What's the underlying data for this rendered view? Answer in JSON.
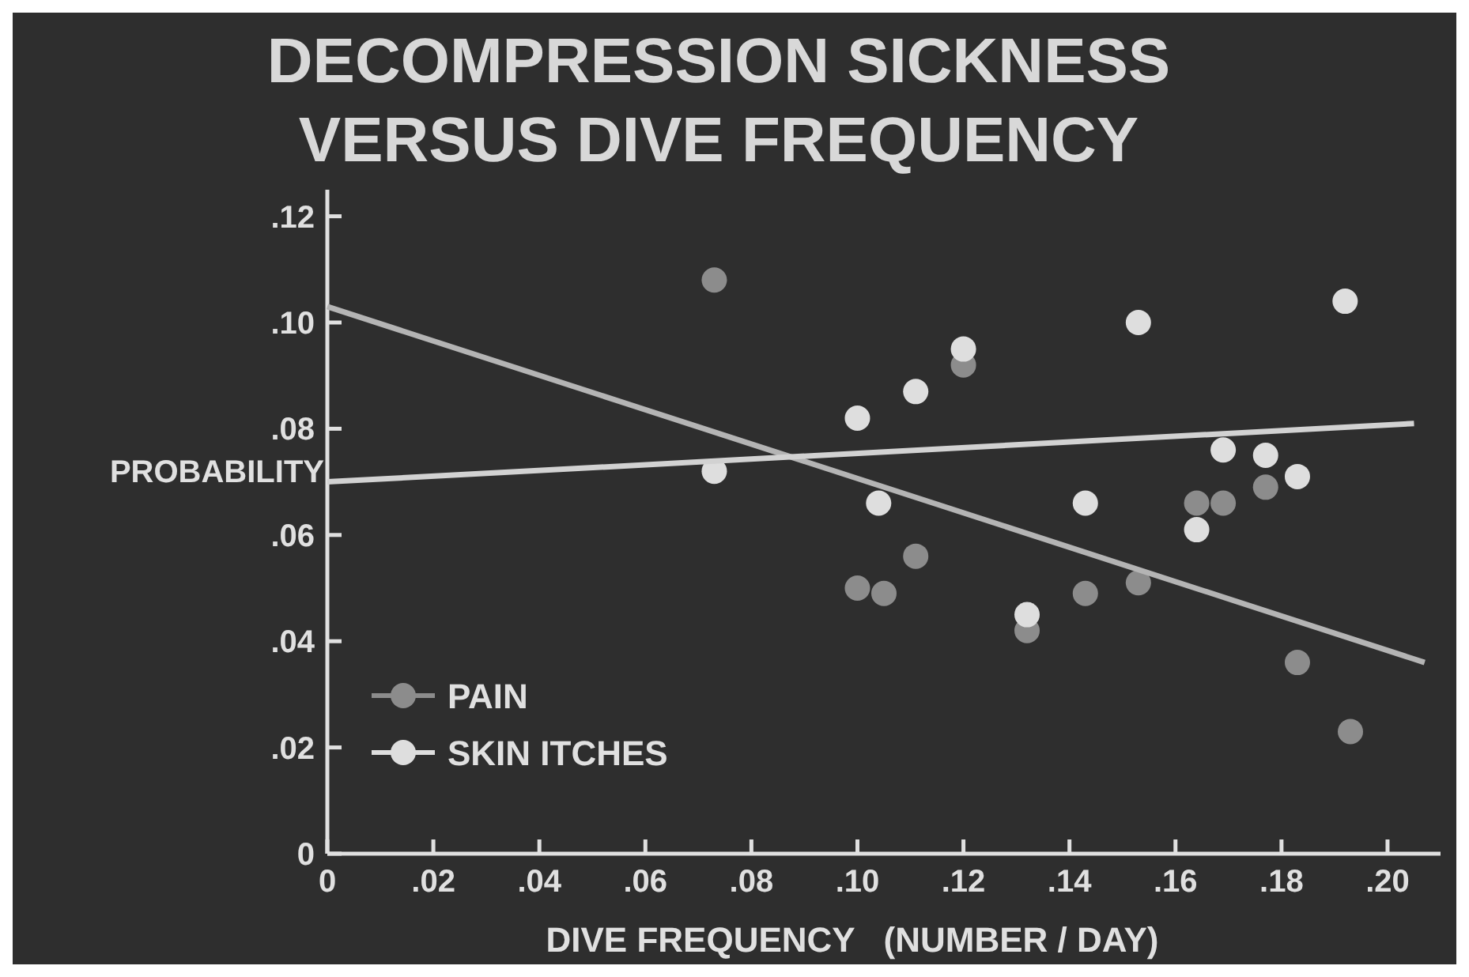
{
  "chart_data": {
    "type": "scatter",
    "title": "DECOMPRESSION SICKNESS VERSUS DIVE FREQUENCY",
    "xlabel": "DIVE FREQUENCY   (NUMBER / DAY)",
    "ylabel": "PROBABILITY",
    "xlim": [
      0,
      0.21
    ],
    "ylim": [
      0,
      0.125
    ],
    "xticks": [
      0,
      {
        "value": 0.02,
        "label": ".02"
      },
      {
        "value": 0.04,
        "label": ".04"
      },
      {
        "value": 0.06,
        "label": ".06"
      },
      {
        "value": 0.08,
        "label": ".08"
      },
      {
        "value": 0.1,
        "label": ".10"
      },
      {
        "value": 0.12,
        "label": ".12"
      },
      {
        "value": 0.14,
        "label": ".14"
      },
      {
        "value": 0.16,
        "label": ".16"
      },
      {
        "value": 0.18,
        "label": ".18"
      },
      {
        "value": 0.2,
        "label": ".20"
      }
    ],
    "yticks": [
      0,
      {
        "value": 0.02,
        "label": ".02"
      },
      {
        "value": 0.04,
        "label": ".04"
      },
      {
        "value": 0.06,
        "label": ".06"
      },
      {
        "value": 0.08,
        "label": ".08"
      },
      {
        "value": 0.1,
        "label": ".10"
      },
      {
        "value": 0.12,
        "label": ".12"
      }
    ],
    "grid": false,
    "legend": "bottom left",
    "series": [
      {
        "name": "PAIN",
        "color": "#8c8c8c",
        "marker": "circle",
        "x": [
          0.073,
          0.12,
          0.1,
          0.105,
          0.111,
          0.132,
          0.143,
          0.153,
          0.164,
          0.169,
          0.177,
          0.183,
          0.193
        ],
        "values": [
          0.108,
          0.092,
          0.05,
          0.049,
          0.056,
          0.042,
          0.049,
          0.051,
          0.066,
          0.066,
          0.069,
          0.036,
          0.023
        ]
      },
      {
        "name": "SKIN ITCHES",
        "color": "#dedede",
        "marker": "circle",
        "x": [
          0.073,
          0.1,
          0.111,
          0.12,
          0.104,
          0.132,
          0.143,
          0.153,
          0.164,
          0.169,
          0.177,
          0.183,
          0.192
        ],
        "values": [
          0.072,
          0.082,
          0.087,
          0.095,
          0.066,
          0.045,
          0.066,
          0.1,
          0.061,
          0.076,
          0.075,
          0.071,
          0.104
        ]
      },
      {
        "type": "line",
        "color": "#b4b4b4",
        "x": [
          0,
          0.207
        ],
        "values": [
          0.103,
          0.036
        ],
        "line_style": "solid"
      },
      {
        "type": "line",
        "color": "#d2d2d2",
        "x": [
          0,
          0.205
        ],
        "values": [
          0.07,
          0.081
        ],
        "line_style": "solid"
      }
    ]
  }
}
